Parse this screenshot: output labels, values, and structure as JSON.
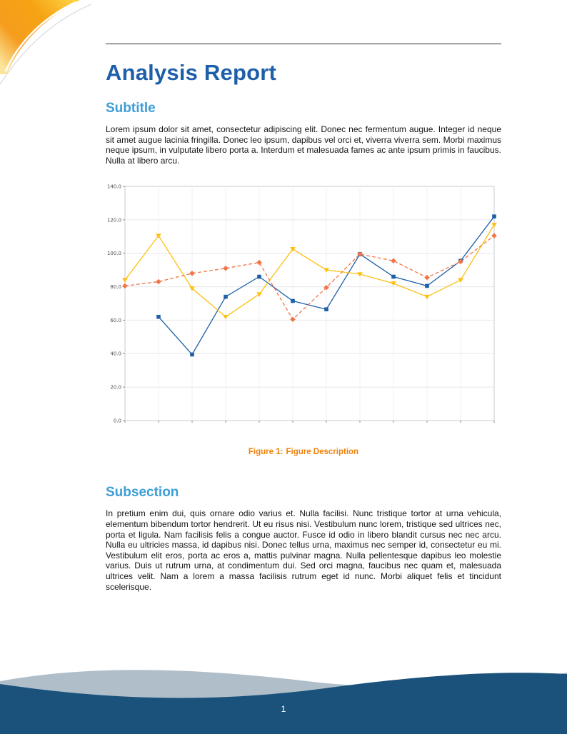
{
  "document": {
    "title": "Analysis Report",
    "sections": [
      {
        "heading": "Subtitle",
        "body": "Lorem ipsum dolor sit amet, consectetur adipiscing elit. Donec nec fermentum augue. Integer id neque sit amet augue lacinia fringilla. Donec leo ipsum, dapibus vel orci et, viverra viverra sem. Morbi maximus neque ipsum, in vulputate libero porta a. Interdum et malesuada fames ac ante ipsum primis in faucibus. Nulla at libero arcu."
      },
      {
        "heading": "Subsection",
        "body": "In pretium enim dui, quis ornare odio varius et. Nulla facilisi. Nunc tristique tortor at urna vehicula, elementum bibendum tortor hendrerit. Ut eu risus nisi. Vestibulum nunc lorem, tristique sed ultrices nec, porta et ligula. Nam facilisis felis a congue auctor. Fusce id odio in libero blandit cursus nec nec arcu. Nulla eu ultricies massa, id dapibus nisi. Donec tellus urna, maximus nec semper id, consectetur eu mi. Vestibulum elit eros, porta ac eros a, mattis pulvinar magna. Nulla pellentesque dapibus leo molestie varius. Duis ut rutrum urna, at condimentum dui. Sed orci magna, faucibus nec quam et, malesuada ultrices velit. Nam a lorem a massa facilisis rutrum eget id nunc. Morbi aliquet felis et tincidunt scelerisque."
      }
    ]
  },
  "figure": {
    "caption_label": "Figure 1:",
    "caption_text": "Figure Description"
  },
  "footer": {
    "page_number": "1"
  },
  "colors": {
    "title_blue": "#1e5fa9",
    "heading_blue": "#3d9ed8",
    "caption_orange": "#ee8109",
    "footer_navy": "#1a527c",
    "footer_gray": "#afbec9",
    "deco_orange": "#f6a313",
    "deco_yellow": "#ffd84a"
  },
  "chart_data": {
    "type": "line",
    "title": "",
    "xlabel": "",
    "ylabel": "",
    "x": [
      0,
      1,
      2,
      3,
      4,
      5,
      6,
      7,
      8,
      9,
      10,
      11
    ],
    "xtick_labels": [],
    "ylim": [
      0,
      140
    ],
    "ytick_step": 20,
    "ytick_labels": [
      "0.0",
      "20.0",
      "40.0",
      "60.0",
      "80.0",
      "100.0",
      "120.0",
      "140.0"
    ],
    "grid": true,
    "legend": "none",
    "series": [
      {
        "name": "series-blue",
        "color": "#1f5fa8",
        "marker": "square",
        "dash": "solid",
        "values": [
          null,
          62,
          39.5,
          74,
          86,
          71.5,
          66.5,
          99.5,
          86,
          80.5,
          95.5,
          122
        ]
      },
      {
        "name": "series-yellow",
        "color": "#fdc011",
        "marker": "triangle",
        "dash": "solid",
        "values": [
          84,
          110.5,
          79,
          62,
          75.5,
          102.5,
          90,
          87.5,
          82,
          74,
          84,
          117
        ]
      },
      {
        "name": "series-orange-dashed",
        "color": "#f0764a",
        "marker": "diamond",
        "dash": "dashed",
        "values": [
          80.5,
          83,
          88,
          91,
          94.5,
          60.5,
          79.5,
          99.5,
          95.5,
          85.5,
          95,
          110.5
        ]
      }
    ]
  }
}
